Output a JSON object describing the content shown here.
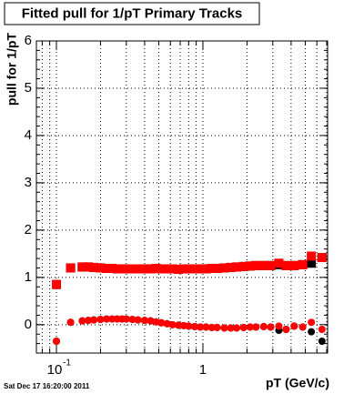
{
  "chart_data": {
    "type": "scatter",
    "title": "Fitted pull for 1/pT  Primary Tracks",
    "x_label": "pT (GeV/c)",
    "y_label": "pull for 1/pT",
    "timestamp": "Sat Dec 17 16:20:00 2011",
    "xscale": "log",
    "xlim": [
      0.073,
      7.1
    ],
    "ylim": [
      -0.6,
      6
    ],
    "xticks": [
      {
        "value": 0.1,
        "label": "10",
        "exponent": "-1"
      },
      1
    ],
    "xminor": [
      0.08,
      0.09,
      0.2,
      0.3,
      0.4,
      0.5,
      0.6,
      0.7,
      0.8,
      0.9,
      2,
      3,
      4,
      5,
      6,
      7
    ],
    "yticks": [
      0,
      1,
      2,
      3,
      4,
      5,
      6
    ],
    "grid": true,
    "x": [
      0.1,
      0.125,
      0.15,
      0.165,
      0.18,
      0.2,
      0.22,
      0.24,
      0.26,
      0.28,
      0.3,
      0.33,
      0.36,
      0.4,
      0.44,
      0.48,
      0.52,
      0.57,
      0.62,
      0.68,
      0.74,
      0.8,
      0.88,
      0.96,
      1.05,
      1.15,
      1.25,
      1.4,
      1.55,
      1.7,
      1.9,
      2.1,
      2.3,
      2.6,
      2.9,
      3.3,
      3.7,
      4.2,
      4.8,
      5.5,
      6.5
    ],
    "series": [
      {
        "color": "#000000",
        "marker": "square",
        "values": [
          0.85,
          1.2,
          1.22,
          1.22,
          1.21,
          1.2,
          1.19,
          1.19,
          1.18,
          1.18,
          1.18,
          1.18,
          1.18,
          1.18,
          1.18,
          1.19,
          1.18,
          1.18,
          1.18,
          1.17,
          1.18,
          1.18,
          1.18,
          1.18,
          1.18,
          1.19,
          1.19,
          1.2,
          1.21,
          1.22,
          1.23,
          1.24,
          1.25,
          1.25,
          1.25,
          1.27,
          1.25,
          1.25,
          1.27,
          1.3,
          1.42
        ]
      },
      {
        "color": "#000000",
        "marker": "circle",
        "values": [
          -0.35,
          0.05,
          0.08,
          0.09,
          0.1,
          0.11,
          0.12,
          0.12,
          0.12,
          0.12,
          0.12,
          0.11,
          0.1,
          0.09,
          0.08,
          0.06,
          0.04,
          0.02,
          0.0,
          -0.01,
          -0.02,
          -0.03,
          -0.04,
          -0.05,
          -0.05,
          -0.06,
          -0.06,
          -0.07,
          -0.07,
          -0.07,
          -0.06,
          -0.05,
          -0.05,
          -0.04,
          -0.05,
          -0.12,
          -0.1,
          -0.03,
          -0.05,
          -0.15,
          -0.35
        ]
      },
      {
        "color": "#ff0000",
        "marker": "square",
        "values": [
          0.85,
          1.2,
          1.22,
          1.22,
          1.21,
          1.2,
          1.19,
          1.19,
          1.18,
          1.18,
          1.18,
          1.18,
          1.18,
          1.18,
          1.18,
          1.19,
          1.18,
          1.18,
          1.18,
          1.17,
          1.18,
          1.18,
          1.18,
          1.18,
          1.18,
          1.19,
          1.19,
          1.2,
          1.21,
          1.22,
          1.23,
          1.24,
          1.25,
          1.25,
          1.25,
          1.3,
          1.25,
          1.25,
          1.27,
          1.45,
          1.42
        ]
      },
      {
        "color": "#ff0000",
        "marker": "circle",
        "values": [
          -0.35,
          0.05,
          0.08,
          0.09,
          0.1,
          0.11,
          0.12,
          0.12,
          0.12,
          0.12,
          0.12,
          0.11,
          0.1,
          0.09,
          0.08,
          0.06,
          0.04,
          0.02,
          0.0,
          -0.01,
          -0.02,
          -0.03,
          -0.04,
          -0.05,
          -0.05,
          -0.06,
          -0.06,
          -0.07,
          -0.07,
          -0.07,
          -0.06,
          -0.05,
          -0.05,
          -0.04,
          -0.05,
          -0.03,
          -0.1,
          -0.03,
          -0.05,
          0.05,
          -0.1
        ]
      }
    ]
  }
}
